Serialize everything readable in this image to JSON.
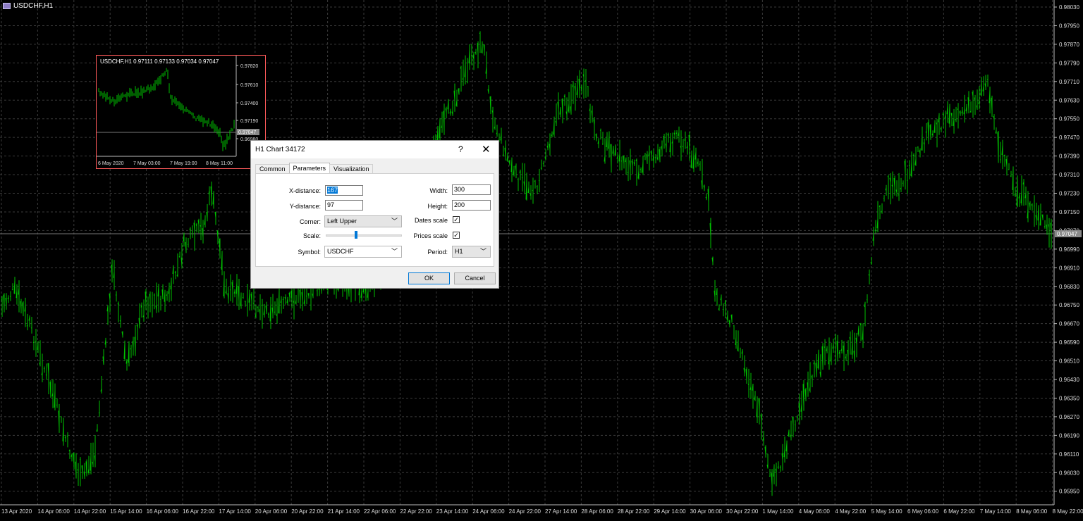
{
  "chart": {
    "title": "USDCHF,H1",
    "current_price": "0.97047",
    "price_labels": [
      "0.98030",
      "0.97950",
      "0.97870",
      "0.97790",
      "0.97710",
      "0.97630",
      "0.97550",
      "0.97470",
      "0.97390",
      "0.97310",
      "0.97230",
      "0.97150",
      "0.97070",
      "0.96990",
      "0.96910",
      "0.96830",
      "0.96750",
      "0.96670",
      "0.96590",
      "0.96510",
      "0.96430",
      "0.96350",
      "0.96270",
      "0.96190",
      "0.96110",
      "0.96030",
      "0.95950"
    ],
    "time_labels": [
      "13 Apr 2020",
      "14 Apr 06:00",
      "14 Apr 22:00",
      "15 Apr 14:00",
      "16 Apr 06:00",
      "16 Apr 22:00",
      "17 Apr 14:00",
      "20 Apr 06:00",
      "20 Apr 22:00",
      "21 Apr 14:00",
      "22 Apr 06:00",
      "22 Apr 22:00",
      "23 Apr 14:00",
      "24 Apr 06:00",
      "24 Apr 22:00",
      "27 Apr 14:00",
      "28 Apr 06:00",
      "28 Apr 22:00",
      "29 Apr 14:00",
      "30 Apr 06:00",
      "30 Apr 22:00",
      "1 May 14:00",
      "4 May 06:00",
      "4 May 22:00",
      "5 May 14:00",
      "6 May 06:00",
      "6 May 22:00",
      "7 May 14:00",
      "8 May 06:00",
      "8 May 22:00"
    ],
    "bar_color": "#00c000",
    "grid_color": "#3a3a3a"
  },
  "mini_chart": {
    "title": "USDCHF,H1  0.97111 0.97133 0.97034 0.97047",
    "current_price": "0.97047",
    "price_labels": [
      "0.97820",
      "0.97610",
      "0.97400",
      "0.97190",
      "0.96980"
    ],
    "time_labels": [
      "6 May 2020",
      "7 May 03:00",
      "7 May 19:00",
      "8 May 11:00"
    ],
    "border_color": "#ff5a5a"
  },
  "dialog": {
    "title": "H1 Chart 34172",
    "help": "?",
    "close": "✕",
    "tabs": [
      "Common",
      "Parameters",
      "Visualization"
    ],
    "active_tab": "Parameters",
    "x_distance": {
      "label": "X-distance:",
      "value": "167"
    },
    "y_distance": {
      "label": "Y-distance:",
      "value": "97"
    },
    "corner": {
      "label": "Corner:",
      "value": "Left Upper"
    },
    "scale": {
      "label": "Scale:",
      "level": 0.4
    },
    "symbol": {
      "label": "Symbol:",
      "value": "USDCHF"
    },
    "width": {
      "label": "Width:",
      "value": "300"
    },
    "height": {
      "label": "Height:",
      "value": "200"
    },
    "dates_scale": {
      "label": "Dates scale",
      "checked": "✓"
    },
    "prices_scale": {
      "label": "Prices scale",
      "checked": "✓"
    },
    "period": {
      "label": "Period:",
      "value": "H1"
    },
    "ok": "OK",
    "cancel": "Cancel"
  }
}
